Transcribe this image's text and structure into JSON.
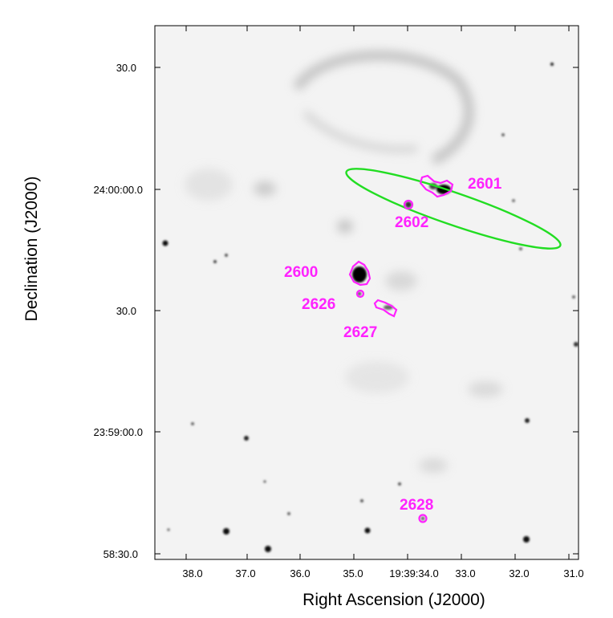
{
  "axes": {
    "x_title": "Right Ascension (J2000)",
    "y_title": "Declination (J2000)",
    "x_ticks": [
      "38.0",
      "37.0",
      "36.0",
      "35.0",
      "19:39:34.0",
      "33.0",
      "32.0",
      "31.0"
    ],
    "y_ticks": [
      "30.0",
      "24:00:00.0",
      "30.0",
      "23:59:00.0",
      "58:30.0"
    ]
  },
  "sources": [
    {
      "id": "2600",
      "label": "2600"
    },
    {
      "id": "2601",
      "label": "2601"
    },
    {
      "id": "2602",
      "label": "2602"
    },
    {
      "id": "2626",
      "label": "2626"
    },
    {
      "id": "2627",
      "label": "2627"
    },
    {
      "id": "2628",
      "label": "2628"
    }
  ],
  "colors": {
    "contour": "#ff22ff",
    "label": "#ff22ff",
    "ellipse": "#22dd22",
    "frame": "#000000",
    "background": "#f3f3f3"
  }
}
